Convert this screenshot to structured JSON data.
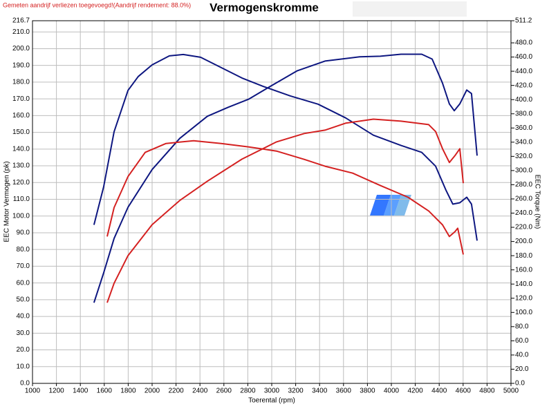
{
  "chart_data": {
    "type": "line",
    "title": "Vermogenskromme",
    "subtitle": "Gemeten aandrijf verliezen toegevoegd!(Aandrijf rendement: 88.0%)",
    "xlabel": "Toerental (rpm)",
    "ylabel": "EEC Motor Vermogen (pk)",
    "y2label": "EEC Torque (Nm)",
    "xlim": [
      1000,
      5000
    ],
    "xticks": [
      1000,
      1200,
      1400,
      1600,
      1800,
      2000,
      2200,
      2400,
      2600,
      2800,
      3000,
      3200,
      3400,
      3600,
      3800,
      4000,
      4200,
      4400,
      4600,
      4800,
      5000
    ],
    "ylim": [
      0,
      216.7
    ],
    "yticks": [
      {
        "value": 0,
        "label": "0.0"
      },
      {
        "value": 10,
        "label": "10.0"
      },
      {
        "value": 20,
        "label": "20.0"
      },
      {
        "value": 30,
        "label": "30.0"
      },
      {
        "value": 40,
        "label": "40.0"
      },
      {
        "value": 50,
        "label": "50.0"
      },
      {
        "value": 60,
        "label": "60.0"
      },
      {
        "value": 70,
        "label": "70.0"
      },
      {
        "value": 80,
        "label": "80.0"
      },
      {
        "value": 90,
        "label": "90.0"
      },
      {
        "value": 100,
        "label": "100.0"
      },
      {
        "value": 110,
        "label": "110.0"
      },
      {
        "value": 120,
        "label": "120.0"
      },
      {
        "value": 130,
        "label": "130.0"
      },
      {
        "value": 140,
        "label": "140.0"
      },
      {
        "value": 150,
        "label": "150.0"
      },
      {
        "value": 160,
        "label": "160.0"
      },
      {
        "value": 170,
        "label": "170.0"
      },
      {
        "value": 180,
        "label": "180.0"
      },
      {
        "value": 190,
        "label": "190.0"
      },
      {
        "value": 200,
        "label": "200.0"
      },
      {
        "value": 210,
        "label": "210.0"
      },
      216.7
    ],
    "y2lim": [
      0,
      511.2
    ],
    "y2ticks": [
      {
        "value": 0,
        "label": "0.0"
      },
      {
        "value": 20,
        "label": "20.0"
      },
      {
        "value": 40,
        "label": "40.0"
      },
      {
        "value": 60,
        "label": "60.0"
      },
      {
        "value": 80,
        "label": "80.0"
      },
      {
        "value": 100,
        "label": "100.0"
      },
      {
        "value": 120,
        "label": "120.0"
      },
      {
        "value": 140,
        "label": "140.0"
      },
      {
        "value": 160,
        "label": "160.0"
      },
      {
        "value": 180,
        "label": "180.0"
      },
      {
        "value": 200,
        "label": "200.0"
      },
      {
        "value": 220,
        "label": "220.0"
      },
      {
        "value": 240,
        "label": "240.0"
      },
      {
        "value": 260,
        "label": "260.0"
      },
      {
        "value": 280,
        "label": "280.0"
      },
      {
        "value": 300,
        "label": "300.0"
      },
      {
        "value": 320,
        "label": "320.0"
      },
      {
        "value": 340,
        "label": "340.0"
      },
      {
        "value": 360,
        "label": "360.0"
      },
      {
        "value": 380,
        "label": "380.0"
      },
      {
        "value": 400,
        "label": "400.0"
      },
      {
        "value": 420,
        "label": "420.0"
      },
      {
        "value": 440,
        "label": "440.0"
      },
      {
        "value": 460,
        "label": "460.0"
      },
      {
        "value": 480,
        "label": "480.0"
      },
      511.2
    ],
    "grid": true,
    "series": [
      {
        "color": "#0d1680",
        "axis": "y",
        "x": [
          1514,
          1595,
          1682,
          1798,
          2000,
          2231,
          2462,
          2636,
          2809,
          2983,
          3214,
          3445,
          3734,
          3908,
          4081,
          4254,
          4341,
          4428,
          4485,
          4526,
          4572,
          4630,
          4670,
          4717
        ],
        "values": [
          48.2,
          66.0,
          86.6,
          105.2,
          127.8,
          146.4,
          159.6,
          165.0,
          169.9,
          177.3,
          186.8,
          192.6,
          195.1,
          195.5,
          196.7,
          196.7,
          193.8,
          179.4,
          167.0,
          162.9,
          167.0,
          175.3,
          173.2,
          136.1
        ]
      },
      {
        "color": "#0d1680",
        "axis": "y2",
        "x": [
          1514,
          1595,
          1682,
          1798,
          1884,
          2000,
          2144,
          2260,
          2405,
          2578,
          2751,
          2925,
          3156,
          3387,
          3618,
          3850,
          4081,
          4254,
          4370,
          4457,
          4514,
          4572,
          4630,
          4670,
          4717
        ],
        "values": [
          223.5,
          277.0,
          354.7,
          413.0,
          432.5,
          449.0,
          461.6,
          463.6,
          459.7,
          445.1,
          430.5,
          418.9,
          405.2,
          393.6,
          374.2,
          349.9,
          335.3,
          325.6,
          306.1,
          272.1,
          252.7,
          254.6,
          262.4,
          252.7,
          201.2
        ]
      },
      {
        "color": "#d42020",
        "axis": "y",
        "x": [
          1624,
          1682,
          1798,
          2000,
          2231,
          2462,
          2751,
          3040,
          3271,
          3445,
          3618,
          3850,
          4081,
          4312,
          4370,
          4428,
          4485,
          4532,
          4572,
          4601
        ],
        "values": [
          48.2,
          59.8,
          76.3,
          94.8,
          109.3,
          120.8,
          134.0,
          144.3,
          149.3,
          151.3,
          155.5,
          157.9,
          156.7,
          154.6,
          150.5,
          140.2,
          132.0,
          136.1,
          140.2,
          119.6
        ]
      },
      {
        "color": "#d42020",
        "axis": "y2",
        "x": [
          1624,
          1682,
          1798,
          1942,
          2116,
          2347,
          2578,
          2809,
          3040,
          3271,
          3445,
          3676,
          3908,
          4139,
          4312,
          4428,
          4485,
          4532,
          4555,
          4601
        ],
        "values": [
          207.0,
          247.8,
          291.5,
          325.6,
          338.2,
          342.1,
          338.2,
          333.3,
          327.5,
          315.8,
          306.1,
          296.4,
          278.9,
          262.4,
          243.0,
          223.5,
          207.0,
          213.8,
          218.7,
          181.7
        ]
      }
    ]
  }
}
